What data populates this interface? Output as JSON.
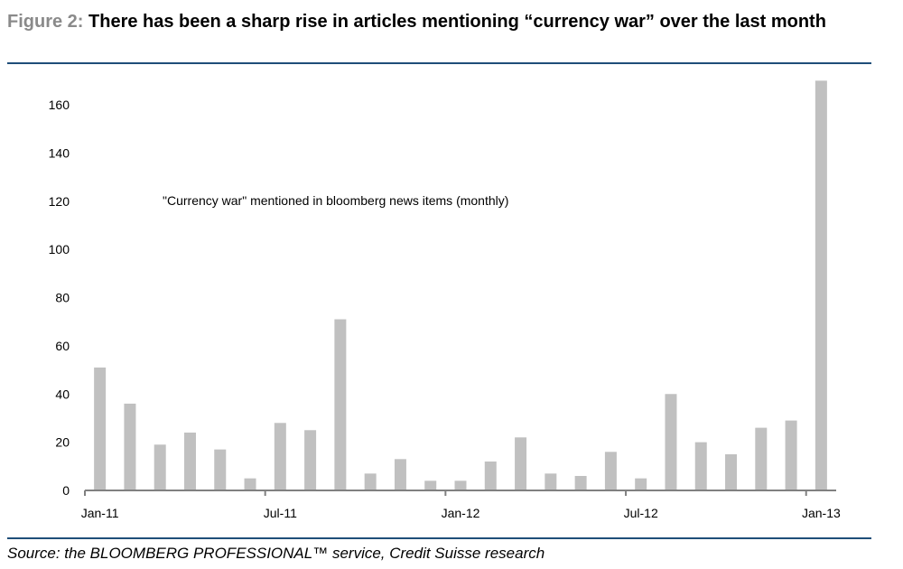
{
  "header": {
    "figure_label": "Figure 2:",
    "title": "There has been a sharp rise in articles mentioning “currency war” over the last month"
  },
  "footer": {
    "source": "Source: the BLOOMBERG PROFESSIONAL™ service, Credit Suisse research"
  },
  "colors": {
    "bar": "#c0c0c0",
    "axis": "#808080",
    "rule": "#1f4e79"
  },
  "chart_data": {
    "type": "bar",
    "title": "",
    "annotation": "\"Currency war\" mentioned in bloomberg news items (monthly)",
    "xlabel": "",
    "ylabel": "",
    "ylim": [
      0,
      170
    ],
    "yticks": [
      0,
      20,
      40,
      60,
      80,
      100,
      120,
      140,
      160
    ],
    "xtick_labels": [
      {
        "label": "Jan-11",
        "index": 0
      },
      {
        "label": "Jul-11",
        "index": 6
      },
      {
        "label": "Jan-12",
        "index": 12
      },
      {
        "label": "Jul-12",
        "index": 18
      },
      {
        "label": "Jan-13",
        "index": 24
      }
    ],
    "categories": [
      "Jan-11",
      "Feb-11",
      "Mar-11",
      "Apr-11",
      "May-11",
      "Jun-11",
      "Jul-11",
      "Aug-11",
      "Sep-11",
      "Oct-11",
      "Nov-11",
      "Dec-11",
      "Jan-12",
      "Feb-12",
      "Mar-12",
      "Apr-12",
      "May-12",
      "Jun-12",
      "Jul-12",
      "Aug-12",
      "Sep-12",
      "Oct-12",
      "Nov-12",
      "Dec-12",
      "Jan-13"
    ],
    "values": [
      51,
      36,
      19,
      24,
      17,
      5,
      28,
      25,
      71,
      7,
      13,
      4,
      4,
      12,
      22,
      7,
      6,
      16,
      5,
      40,
      20,
      15,
      26,
      29,
      170
    ],
    "grid": false,
    "legend": "none"
  }
}
